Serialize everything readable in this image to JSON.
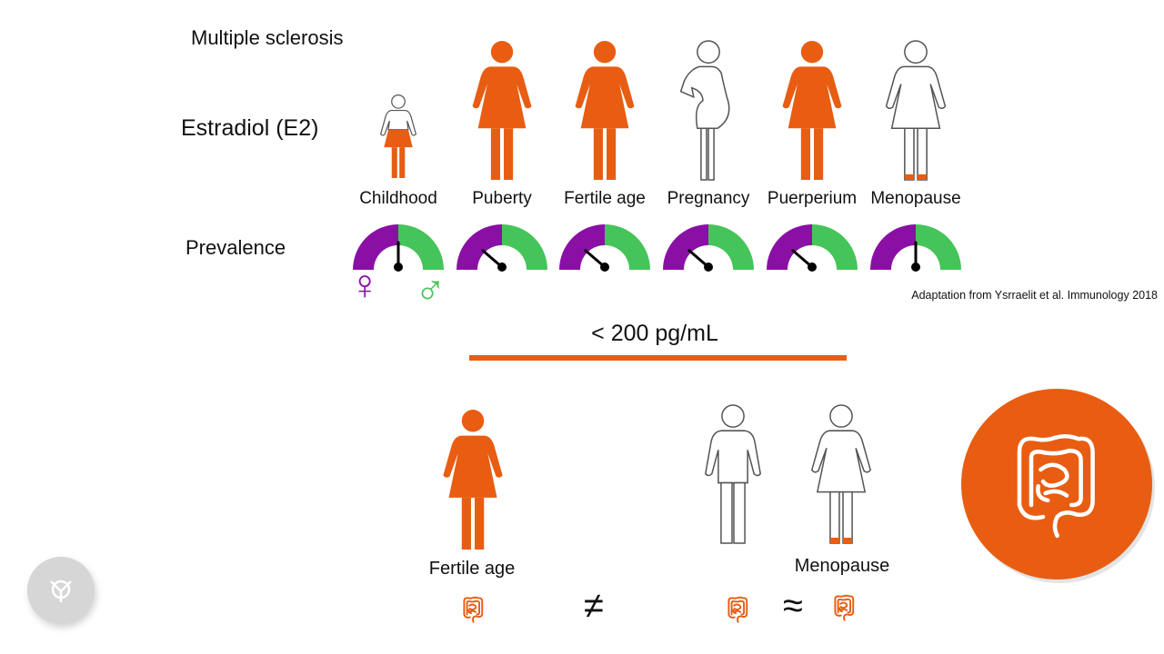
{
  "title": "Multiple sclerosis",
  "row_labels": {
    "estradiol": "Estradiol (E2)",
    "prevalence": "Prevalence"
  },
  "stages": [
    {
      "label": "Childhood",
      "figure": "child-partial",
      "female_share": 0.5
    },
    {
      "label": "Puberty",
      "figure": "female-filled",
      "female_share": 0.75
    },
    {
      "label": "Fertile age",
      "figure": "female-filled",
      "female_share": 0.75
    },
    {
      "label": "Pregnancy",
      "figure": "pregnant-outline",
      "female_share": 0.75
    },
    {
      "label": "Puerperium",
      "figure": "female-filled",
      "female_share": 0.75
    },
    {
      "label": "Menopause",
      "figure": "female-outline-feet",
      "female_share": 0.5
    }
  ],
  "sex_symbols": {
    "female": "♀",
    "male": "♂"
  },
  "citation": "Adaptation from Ysrraelit et al. Immunology 2018",
  "threshold": "< 200 pg/mL",
  "comparison": {
    "left_label": "Fertile age",
    "right_label": "Menopause",
    "not_equal": "≠",
    "approx": "≈"
  },
  "colors": {
    "orange": "#e85d12",
    "purple": "#8a10a5",
    "green": "#45c45a",
    "outline": "#555555",
    "button_gray": "#d6d6d6"
  },
  "icons": {
    "gut": "intestine-icon",
    "button": "logo-icon"
  }
}
